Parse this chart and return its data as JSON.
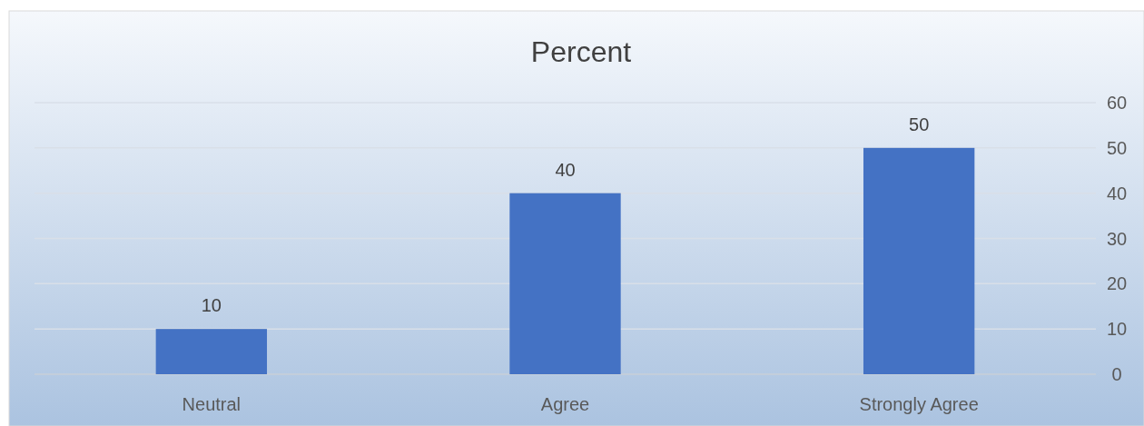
{
  "chart_data": {
    "type": "bar",
    "title": "Percent",
    "categories": [
      "Neutral",
      "Agree",
      "Strongly Agree"
    ],
    "values": [
      10,
      40,
      50
    ],
    "color": "#4472c4",
    "ylim": [
      0,
      60
    ],
    "yticks": [
      0,
      10,
      20,
      30,
      40,
      50,
      60
    ],
    "grid": "y",
    "data_labels": true
  }
}
